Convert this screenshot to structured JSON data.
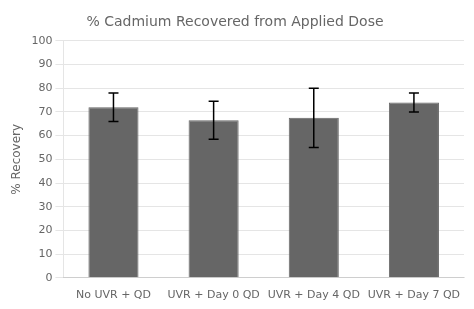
{
  "chart_data": {
    "type": "bar",
    "title": "% Cadmium Recovered from Applied Dose",
    "ylabel": "% Recovery",
    "categories": [
      "No UVR + QD",
      "UVR + Day 0 QD",
      "UVR + Day 4 QD",
      "UVR + Day 7 QD"
    ],
    "values": [
      72,
      66.5,
      67.5,
      74
    ],
    "errors": [
      6,
      8,
      12.5,
      4
    ],
    "color": "#666666",
    "ylim": [
      0,
      100
    ],
    "yticks": [
      0,
      10,
      20,
      30,
      40,
      50,
      60,
      70,
      80,
      90,
      100
    ],
    "grid": true
  }
}
